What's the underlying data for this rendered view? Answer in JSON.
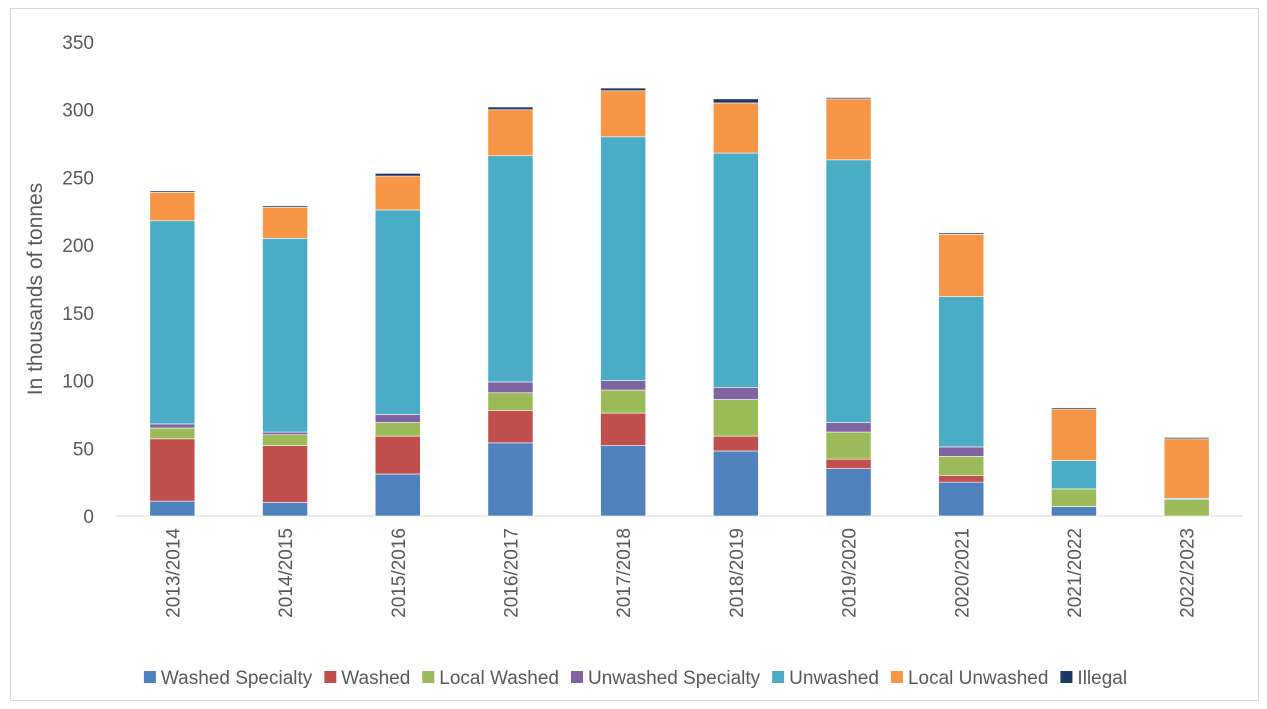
{
  "chart_data": {
    "type": "bar",
    "stacked": true,
    "title": "",
    "xlabel": "",
    "ylabel": "In thousands of tonnes",
    "ylim": [
      0,
      350
    ],
    "yticks": [
      0,
      50,
      100,
      150,
      200,
      250,
      300,
      350
    ],
    "grid": false,
    "legend_position": "bottom",
    "categories": [
      "2013/2014",
      "2014/2015",
      "2015/2016",
      "2016/2017",
      "2017/2018",
      "2018/2019",
      "2019/2020",
      "2020/2021",
      "2021/2022",
      "2022/2023"
    ],
    "series": [
      {
        "name": "Washed Specialty",
        "color": "#4f81bd",
        "values": [
          11,
          10,
          31,
          54,
          52,
          48,
          35,
          25,
          7,
          0
        ]
      },
      {
        "name": "Washed",
        "color": "#c0504d",
        "values": [
          46,
          42,
          28,
          24,
          24,
          11,
          7,
          5,
          0,
          0
        ]
      },
      {
        "name": "Local Washed",
        "color": "#9bbb59",
        "values": [
          8,
          8,
          10,
          13,
          17,
          27,
          20,
          14,
          13,
          12
        ]
      },
      {
        "name": "Unwashed Specialty",
        "color": "#8064a2",
        "values": [
          3,
          2,
          6,
          8,
          7,
          9,
          7,
          7,
          0,
          0
        ]
      },
      {
        "name": "Unwashed",
        "color": "#4bacc6",
        "values": [
          150,
          143,
          151,
          167,
          180,
          173,
          194,
          111,
          21,
          1
        ]
      },
      {
        "name": "Local Unwashed",
        "color": "#f79646",
        "values": [
          21,
          23,
          25,
          34,
          34,
          37,
          45,
          46,
          38,
          44
        ]
      },
      {
        "name": "Illegal",
        "color": "#1f3864",
        "values": [
          1,
          1,
          2,
          2,
          2,
          3,
          1,
          1,
          1,
          1
        ]
      }
    ]
  }
}
